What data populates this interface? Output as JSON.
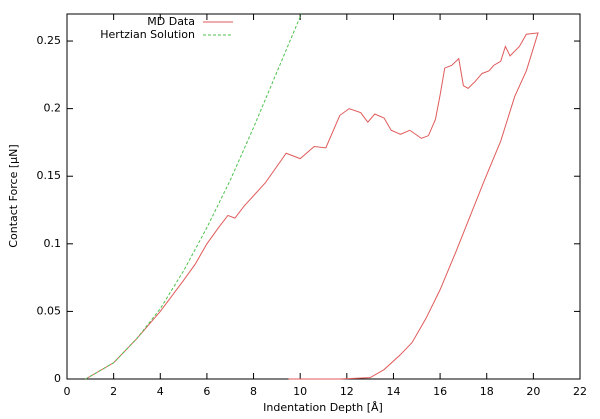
{
  "chart_data": {
    "type": "line",
    "xlabel": "Indentation Depth [Å]",
    "ylabel": "Contact Force [µN]",
    "xlim": [
      0,
      22
    ],
    "ylim": [
      0,
      0.27
    ],
    "xticks": [
      0,
      2,
      4,
      6,
      8,
      10,
      12,
      14,
      16,
      18,
      20,
      22
    ],
    "yticks": [
      0,
      0.05,
      0.1,
      0.15,
      0.2,
      0.25
    ],
    "legend": "top-left",
    "series": [
      {
        "name": "MD Data",
        "color": "#e05a5a",
        "style": "solid",
        "x": [
          0.8,
          2,
          3,
          4,
          5,
          5.5,
          6,
          6.5,
          6.9,
          7.2,
          7.6,
          8.5,
          9.4,
          10,
          10.6,
          11.1,
          11.7,
          12.1,
          12.6,
          12.9,
          13.2,
          13.6,
          13.9,
          14.3,
          14.7,
          15.2,
          15.5,
          15.8,
          16,
          16.2,
          16.5,
          16.8,
          17,
          17.2,
          17.5,
          17.8,
          18.1,
          18.3,
          18.6,
          18.8,
          19,
          19.4,
          19.7,
          20.2,
          19.7,
          19.2,
          18.6,
          17.9,
          17.3,
          16.7,
          16,
          15.4,
          14.8,
          14.3,
          13.6,
          13,
          11.7,
          9.5
        ],
        "values": [
          0,
          0.012,
          0.03,
          0.05,
          0.073,
          0.085,
          0.1,
          0.112,
          0.121,
          0.119,
          0.128,
          0.145,
          0.167,
          0.163,
          0.172,
          0.171,
          0.195,
          0.2,
          0.197,
          0.19,
          0.196,
          0.193,
          0.184,
          0.181,
          0.184,
          0.178,
          0.18,
          0.192,
          0.21,
          0.23,
          0.232,
          0.237,
          0.217,
          0.215,
          0.22,
          0.226,
          0.228,
          0.232,
          0.235,
          0.246,
          0.239,
          0.246,
          0.255,
          0.256,
          0.228,
          0.209,
          0.176,
          0.147,
          0.121,
          0.095,
          0.066,
          0.045,
          0.027,
          0.018,
          0.007,
          0.001,
          0,
          0
        ]
      },
      {
        "name": "Hertzian Solution",
        "color": "#4cc24c",
        "style": "dashed",
        "x": [
          0.8,
          2,
          3,
          4,
          5,
          6,
          7,
          8,
          9,
          10,
          10.05
        ],
        "values": [
          0,
          0.012,
          0.03,
          0.052,
          0.08,
          0.112,
          0.147,
          0.186,
          0.227,
          0.268,
          0.27
        ]
      }
    ]
  }
}
